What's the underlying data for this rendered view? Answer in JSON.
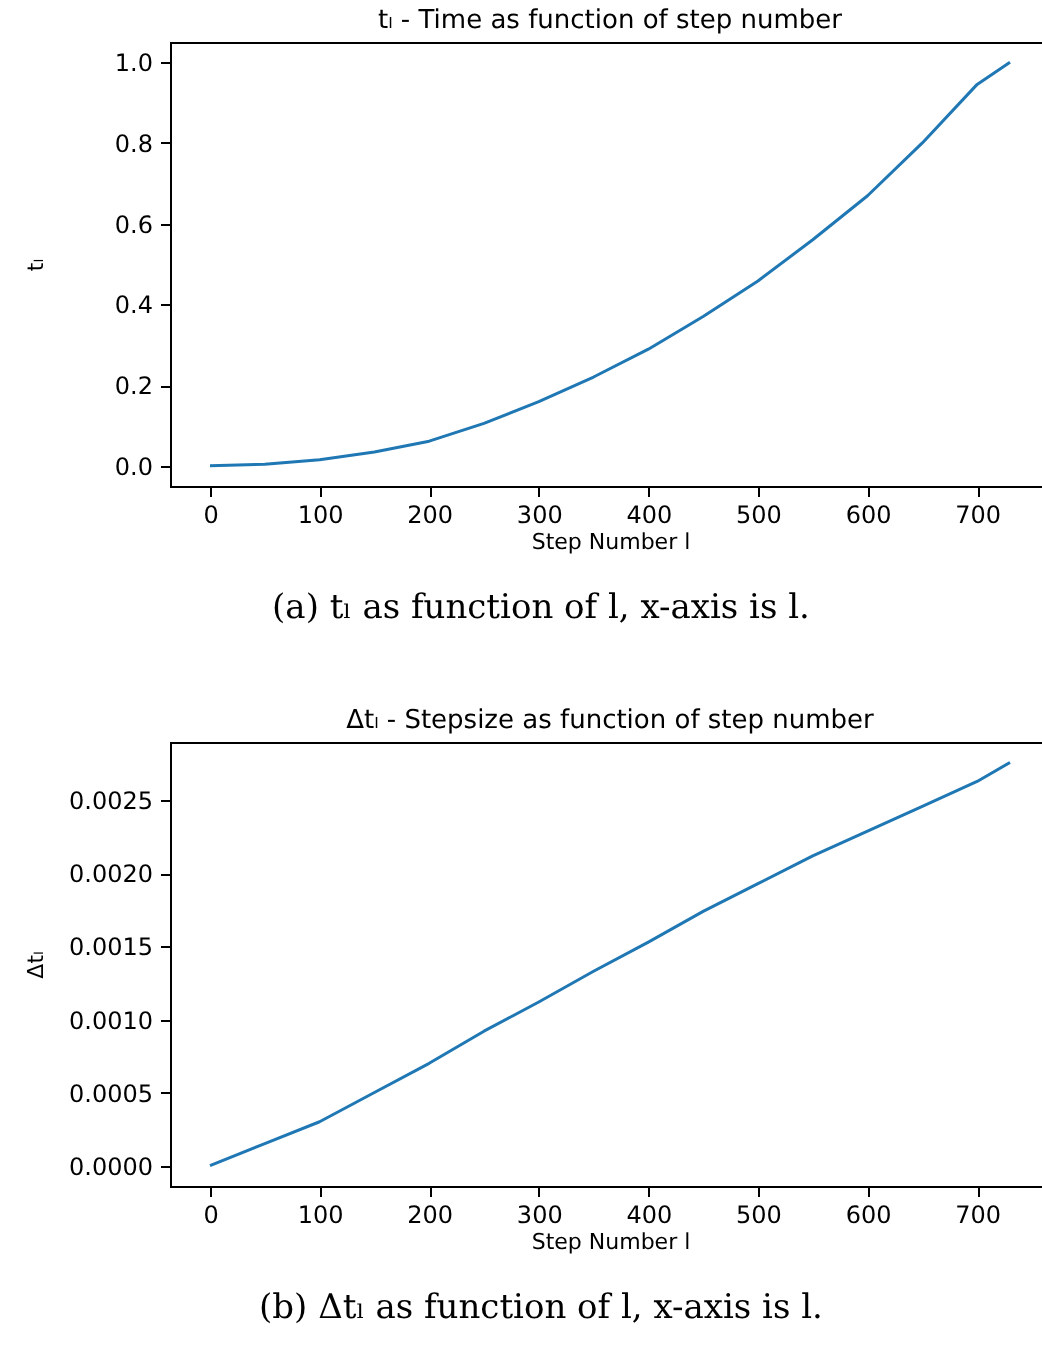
{
  "chart_data": [
    {
      "type": "line",
      "title": "tₗ  -  Time as function of step number",
      "xlabel": "Step Number l",
      "ylabel": "tₗ",
      "annotations": [
        "(a) tₗ as function of l, x-axis is l."
      ],
      "grid": false,
      "marker": "none",
      "line_style": "solid",
      "x": [
        0,
        50,
        100,
        150,
        200,
        250,
        300,
        350,
        400,
        450,
        500,
        550,
        600,
        650,
        700,
        730
      ],
      "series": [
        {
          "color": "#1f77b4",
          "values": [
            0,
            0.004,
            0.015,
            0.034,
            0.061,
            0.105,
            0.159,
            0.22,
            0.289,
            0.37,
            0.458,
            0.56,
            0.669,
            0.8,
            0.945,
            1.0
          ]
        }
      ],
      "xlim": [
        -36.5,
        766.5
      ],
      "xticks": [
        0,
        100,
        200,
        300,
        400,
        500,
        600,
        700
      ],
      "ylim": [
        -0.05,
        1.05
      ],
      "yticks": [
        {
          "value": 0,
          "label": "0.0"
        },
        {
          "value": 0.2,
          "label": "0.2"
        },
        {
          "value": 0.4,
          "label": "0.4"
        },
        {
          "value": 0.6,
          "label": "0.6"
        },
        {
          "value": 0.8,
          "label": "0.8"
        },
        {
          "value": 1,
          "label": "1.0"
        }
      ]
    },
    {
      "type": "line",
      "title": "Δtₗ  -  Stepsize as function of step number",
      "xlabel": "Step Number l",
      "ylabel": "Δtₗ",
      "annotations": [
        "(b) Δtₗ as function of l, x-axis is l."
      ],
      "grid": false,
      "marker": "none",
      "line_style": "solid",
      "x": [
        0,
        50,
        100,
        150,
        200,
        250,
        300,
        350,
        400,
        450,
        500,
        550,
        600,
        650,
        700,
        730
      ],
      "series": [
        {
          "color": "#1f77b4",
          "values": [
            0,
            0.00015,
            0.0003,
            0.0005,
            0.0007,
            0.00092,
            0.00112,
            0.00133,
            0.00153,
            0.00174,
            0.00193,
            0.00212,
            0.00229,
            0.00246,
            0.00263,
            0.00276
          ]
        }
      ],
      "xlim": [
        -36.5,
        766.5
      ],
      "xticks": [
        0,
        100,
        200,
        300,
        400,
        500,
        600,
        700
      ],
      "ylim": [
        -0.00014,
        0.0029
      ],
      "yticks": [
        {
          "value": 0,
          "label": "0.0000"
        },
        {
          "value": 0.0005,
          "label": "0.0005"
        },
        {
          "value": 0.001,
          "label": "0.0010"
        },
        {
          "value": 0.0015,
          "label": "0.0015"
        },
        {
          "value": 0.002,
          "label": "0.0020"
        },
        {
          "value": 0.0025,
          "label": "0.0025"
        }
      ]
    }
  ]
}
